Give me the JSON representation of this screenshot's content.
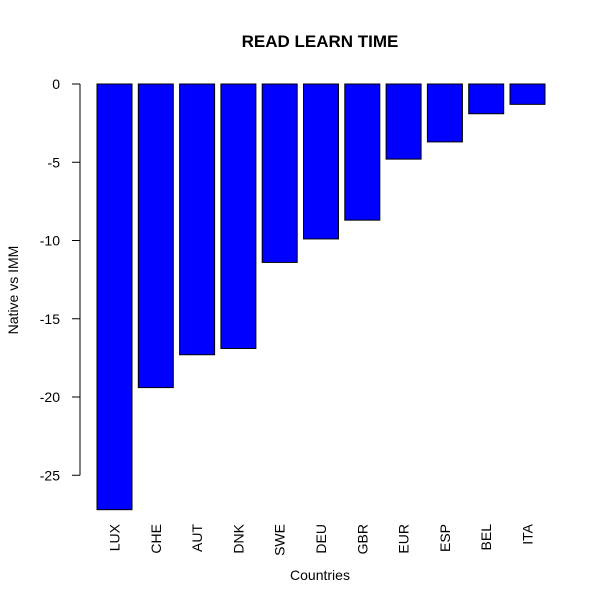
{
  "chart_data": {
    "type": "bar",
    "title": "READ LEARN TIME",
    "xlabel": "Countries",
    "ylabel": "Native vs IMM",
    "categories": [
      "LUX",
      "CHE",
      "AUT",
      "DNK",
      "SWE",
      "DEU",
      "GBR",
      "EUR",
      "ESP",
      "BEL",
      "ITA"
    ],
    "values": [
      -27.2,
      -19.4,
      -17.3,
      -16.9,
      -11.4,
      -9.9,
      -8.7,
      -4.8,
      -3.7,
      -1.9,
      -1.3
    ],
    "yticks": [
      0,
      -5,
      -10,
      -15,
      -20,
      -25
    ],
    "ylim": [
      -27.2,
      0
    ],
    "grid": false,
    "colors": {
      "bar_fill": "#0000ff",
      "bar_stroke": "#000000"
    }
  }
}
